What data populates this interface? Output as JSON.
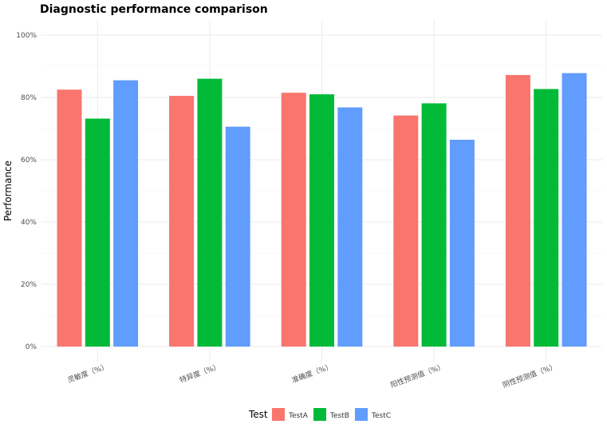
{
  "chart_data": {
    "type": "bar",
    "title": "Diagnostic performance comparison",
    "xlabel": "",
    "ylabel": "Performance",
    "categories": [
      "灵敏度（%）",
      "特异度（%）",
      "准确度（%）",
      "阳性预测值（%）",
      "阴性预测值（%）"
    ],
    "series": [
      {
        "name": "TestA",
        "color": "#F8766D",
        "values": [
          82.5,
          80.5,
          81.5,
          74.2,
          87.2
        ]
      },
      {
        "name": "TestB",
        "color": "#00BA38",
        "values": [
          73.2,
          86.0,
          81.0,
          78.1,
          82.7
        ]
      },
      {
        "name": "TestC",
        "color": "#619CFF",
        "values": [
          85.5,
          70.6,
          76.8,
          66.4,
          87.8
        ]
      }
    ],
    "ylim": [
      0,
      100
    ],
    "yticks": [
      "0%",
      "20%",
      "40%",
      "60%",
      "80%",
      "100%"
    ],
    "legend": {
      "title": "Test",
      "position": "bottom"
    },
    "grid": true
  }
}
